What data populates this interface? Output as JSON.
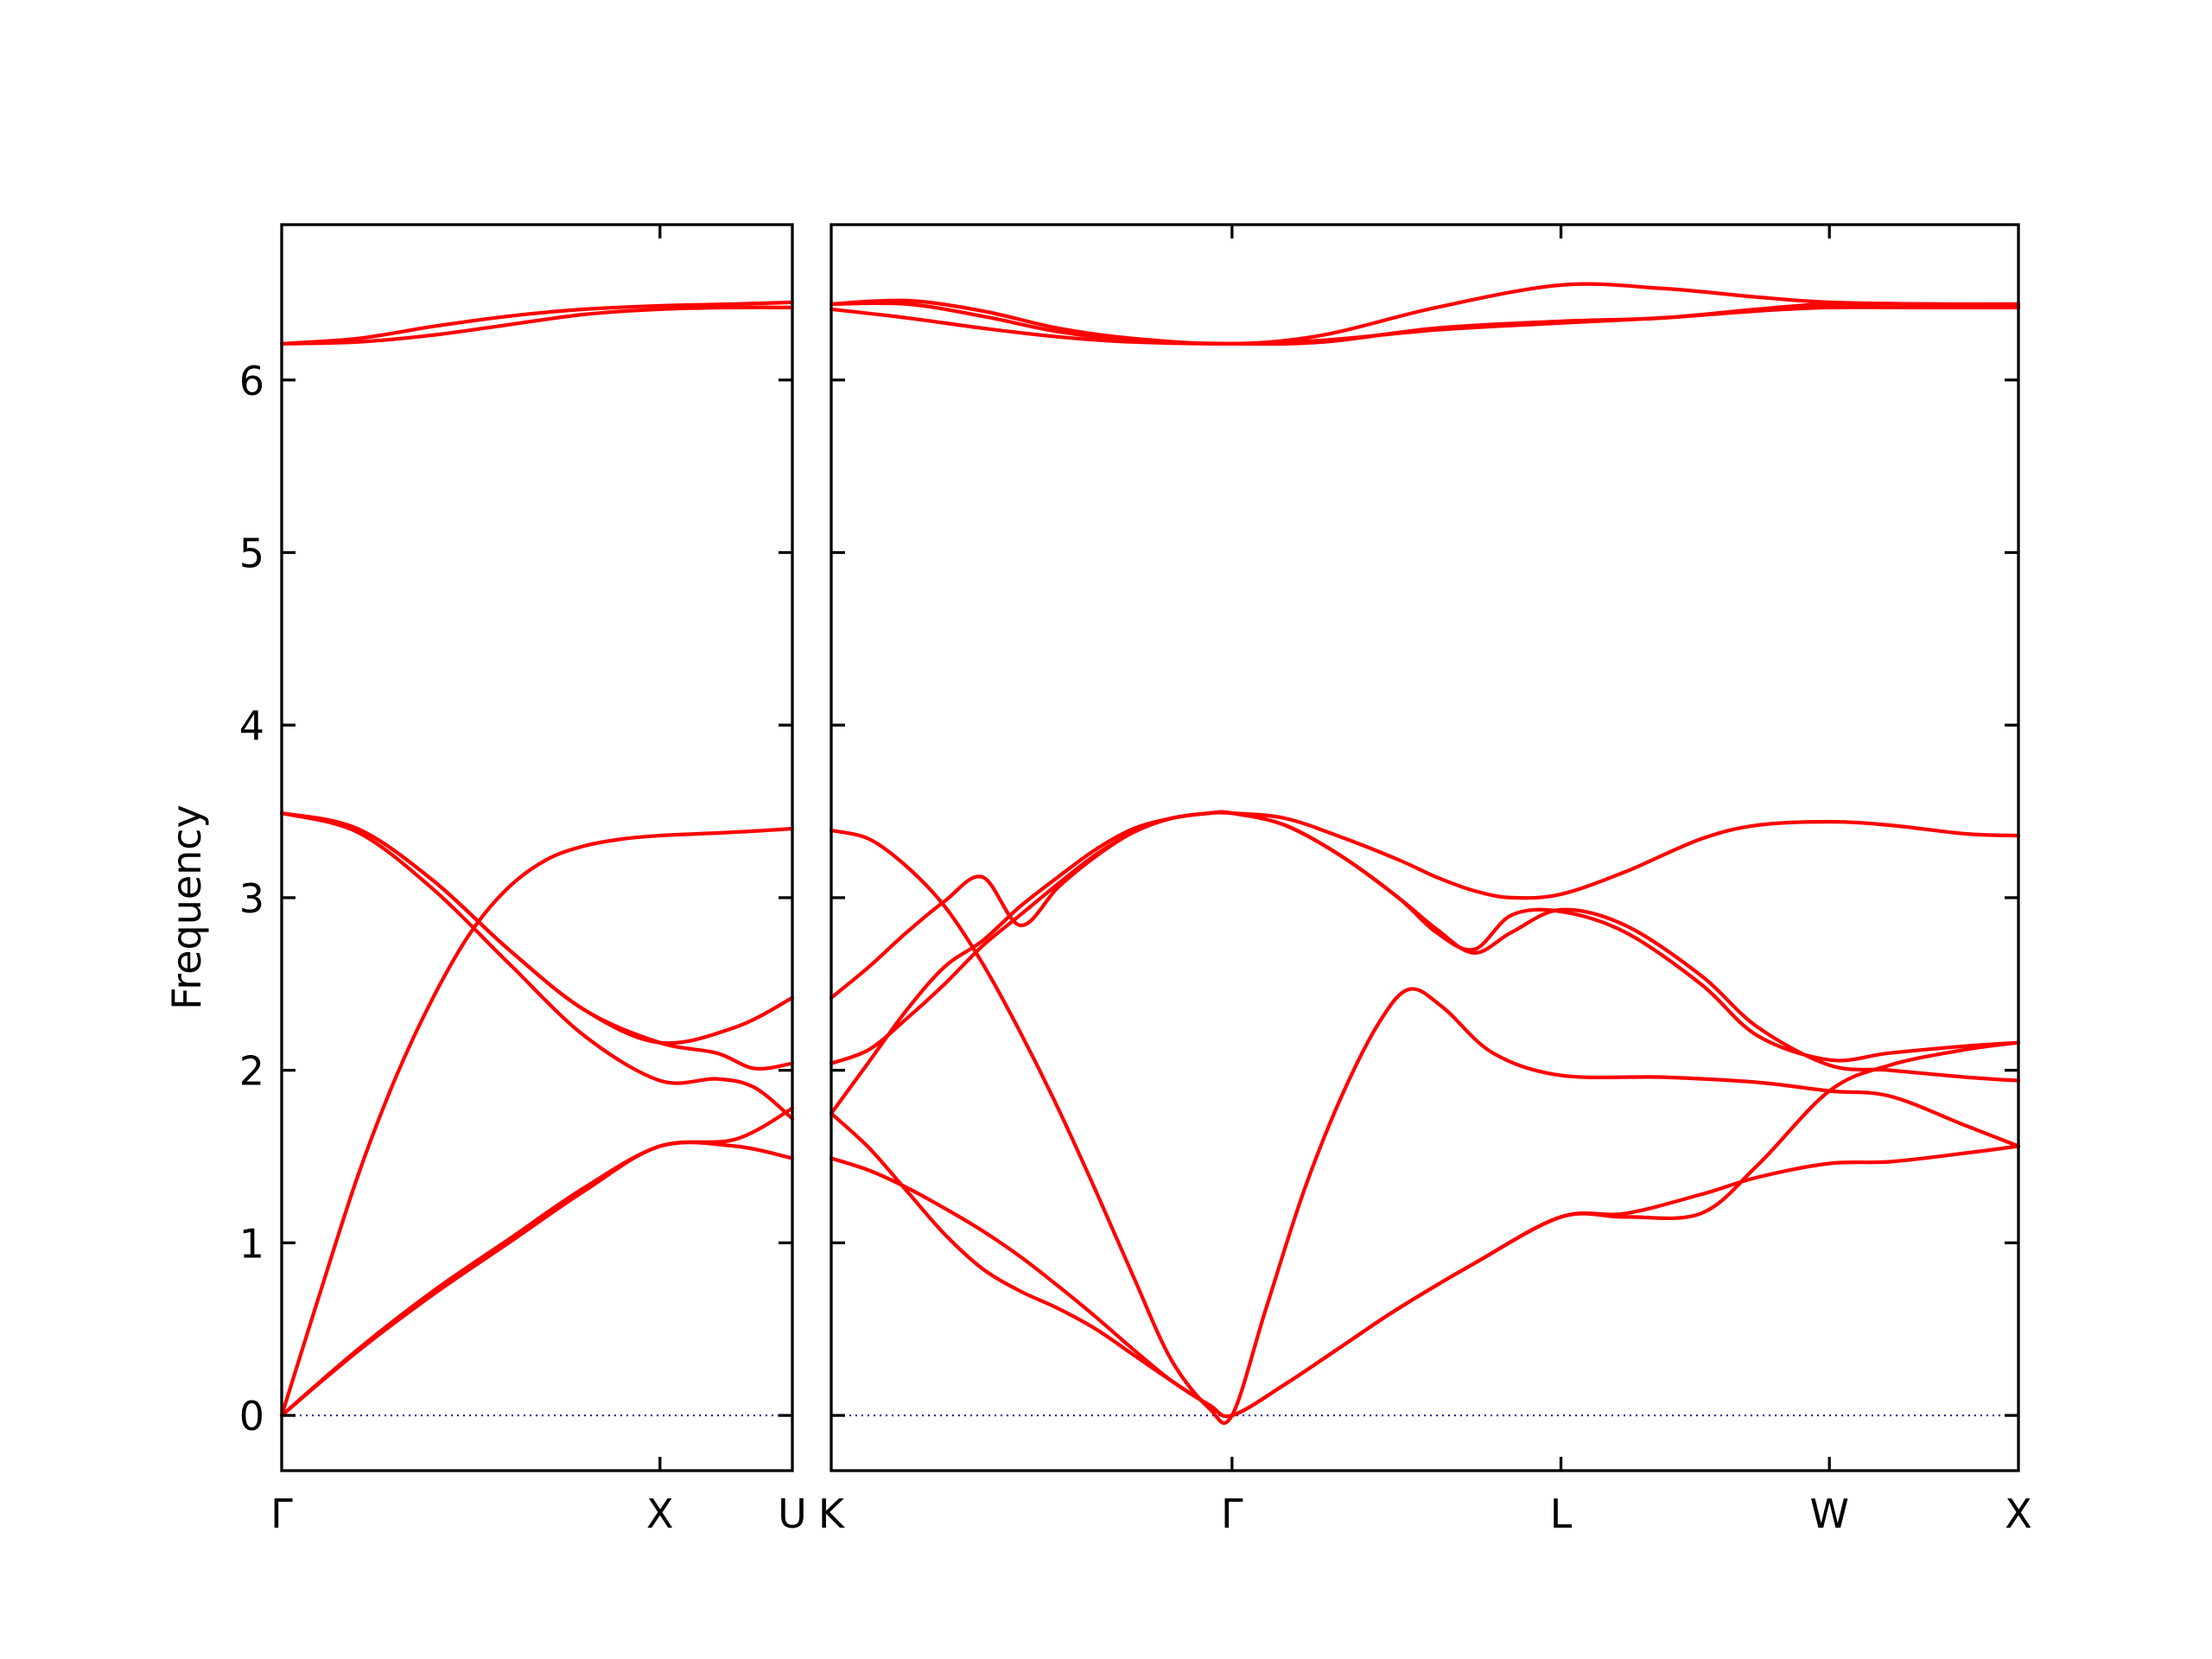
{
  "chart_data": {
    "type": "line",
    "ylabel": "Frequency",
    "ylim": [
      -0.32,
      6.9
    ],
    "yticks": [
      0,
      1,
      2,
      3,
      4,
      5,
      6
    ],
    "line_color": "#ff0000",
    "zero_line_color": "#0000aa",
    "panels": [
      {
        "id": "gamma-x-u",
        "xlim": [
          0,
          1.35
        ],
        "xticks": [
          {
            "x": 0,
            "label": "Γ"
          },
          {
            "x": 1.0,
            "label": "X"
          },
          {
            "x": 1.35,
            "label": "U"
          }
        ],
        "series": [
          {
            "x": [
              0,
              0.2,
              0.4,
              0.6,
              0.8,
              1.0,
              1.2,
              1.35
            ],
            "y": [
              0,
              0.37,
              0.7,
              1.0,
              1.3,
              1.56,
              1.56,
              1.49
            ]
          },
          {
            "x": [
              0,
              0.2,
              0.4,
              0.6,
              0.8,
              1.0,
              1.2,
              1.35
            ],
            "y": [
              0,
              0.38,
              0.72,
              1.02,
              1.32,
              1.56,
              1.6,
              1.78
            ]
          },
          {
            "x": [
              0,
              0.1,
              0.2,
              0.3,
              0.4,
              0.5,
              0.6,
              0.7,
              0.8,
              0.9,
              1.0,
              1.2,
              1.35
            ],
            "y": [
              0,
              0.7,
              1.38,
              1.95,
              2.42,
              2.8,
              3.06,
              3.22,
              3.3,
              3.34,
              3.36,
              3.38,
              3.4
            ]
          },
          {
            "x": [
              0,
              0.2,
              0.4,
              0.6,
              0.8,
              1.0,
              1.15,
              1.25,
              1.35
            ],
            "y": [
              3.49,
              3.38,
              3.05,
              2.62,
              2.2,
              1.94,
              1.95,
              1.9,
              1.72
            ]
          },
          {
            "x": [
              0,
              0.2,
              0.4,
              0.6,
              0.8,
              1.0,
              1.15,
              1.25,
              1.35
            ],
            "y": [
              3.49,
              3.4,
              3.1,
              2.7,
              2.35,
              2.16,
              2.1,
              2.01,
              2.04
            ]
          },
          {
            "x": [
              0,
              0.2,
              0.4,
              0.6,
              0.8,
              1.0,
              1.2,
              1.35
            ],
            "y": [
              3.49,
              3.4,
              3.1,
              2.7,
              2.35,
              2.16,
              2.25,
              2.42
            ]
          },
          {
            "x": [
              0,
              0.2,
              0.4,
              0.6,
              0.8,
              1.0,
              1.2,
              1.35
            ],
            "y": [
              6.21,
              6.22,
              6.26,
              6.32,
              6.38,
              6.41,
              6.42,
              6.42
            ]
          },
          {
            "x": [
              0,
              0.2,
              0.4,
              0.6,
              0.8,
              1.0,
              1.2,
              1.35
            ],
            "y": [
              6.21,
              6.24,
              6.31,
              6.37,
              6.41,
              6.43,
              6.44,
              6.45
            ]
          }
        ]
      },
      {
        "id": "k-gamma-l-w-x",
        "xlim": [
          0,
          3.14
        ],
        "xticks": [
          {
            "x": 0,
            "label": "K"
          },
          {
            "x": 1.06,
            "label": "Γ"
          },
          {
            "x": 1.93,
            "label": "L"
          },
          {
            "x": 2.64,
            "label": "W"
          },
          {
            "x": 3.14,
            "label": "X"
          }
        ],
        "series": [
          {
            "x": [
              0,
              0.1,
              0.2,
              0.3,
              0.4,
              0.5,
              0.6,
              0.7,
              0.8,
              0.9,
              1.0,
              1.06,
              1.2,
              1.35,
              1.5,
              1.7,
              1.93,
              2.1,
              2.3,
              2.45,
              2.64,
              2.8,
              3.0,
              3.14
            ],
            "y": [
              1.75,
              1.55,
              1.3,
              1.05,
              0.85,
              0.72,
              0.62,
              0.5,
              0.35,
              0.2,
              0.06,
              0,
              0.18,
              0.4,
              0.62,
              0.88,
              1.15,
              1.17,
              1.28,
              1.38,
              1.46,
              1.47,
              1.52,
              1.56
            ]
          },
          {
            "x": [
              0,
              0.1,
              0.2,
              0.3,
              0.4,
              0.5,
              0.6,
              0.7,
              0.8,
              0.9,
              1.0,
              1.06,
              1.2,
              1.35,
              1.5,
              1.7,
              1.93,
              2.1,
              2.3,
              2.45,
              2.64,
              2.8,
              3.0,
              3.14
            ],
            "y": [
              1.49,
              1.42,
              1.32,
              1.2,
              1.07,
              0.92,
              0.75,
              0.57,
              0.38,
              0.2,
              0.06,
              0,
              0.18,
              0.4,
              0.62,
              0.88,
              1.15,
              1.15,
              1.17,
              1.45,
              1.88,
              2.03,
              2.12,
              2.16
            ]
          },
          {
            "x": [
              0,
              0.1,
              0.2,
              0.3,
              0.4,
              0.5,
              0.6,
              0.7,
              0.8,
              0.9,
              1.0,
              1.06,
              1.15,
              1.25,
              1.35,
              1.45,
              1.53,
              1.62,
              1.75,
              1.93,
              2.2,
              2.45,
              2.64,
              2.8,
              3.0,
              3.14
            ],
            "y": [
              3.39,
              3.34,
              3.18,
              2.95,
              2.62,
              2.22,
              1.78,
              1.3,
              0.8,
              0.32,
              0.04,
              0,
              0.62,
              1.3,
              1.85,
              2.28,
              2.47,
              2.36,
              2.1,
              1.97,
              1.96,
              1.93,
              1.88,
              1.85,
              1.68,
              1.56
            ]
          },
          {
            "x": [
              0,
              0.1,
              0.2,
              0.3,
              0.4,
              0.5,
              0.6,
              0.7,
              0.8,
              0.9,
              1.0,
              1.06,
              1.2,
              1.35,
              1.5,
              1.6,
              1.7,
              1.8,
              1.93,
              2.1,
              2.3,
              2.45,
              2.64,
              2.8,
              3.0,
              3.14
            ],
            "y": [
              2.04,
              2.12,
              2.3,
              2.5,
              2.72,
              2.9,
              3.08,
              3.25,
              3.38,
              3.46,
              3.49,
              3.49,
              3.42,
              3.24,
              3.0,
              2.82,
              2.68,
              2.8,
              2.93,
              2.84,
              2.55,
              2.25,
              2.03,
              2.0,
              1.96,
              1.94
            ]
          },
          {
            "x": [
              0,
              0.1,
              0.2,
              0.3,
              0.4,
              0.5,
              0.6,
              0.7,
              0.8,
              0.9,
              1.0,
              1.06,
              1.2,
              1.35,
              1.5,
              1.6,
              1.7,
              1.8,
              1.93,
              2.1,
              2.3,
              2.45,
              2.64,
              2.8,
              3.0,
              3.14
            ],
            "y": [
              1.75,
              2.05,
              2.35,
              2.6,
              2.75,
              2.95,
              3.12,
              3.28,
              3.4,
              3.46,
              3.49,
              3.49,
              3.42,
              3.24,
              3.0,
              2.8,
              2.7,
              2.9,
              2.92,
              2.8,
              2.5,
              2.2,
              2.06,
              2.1,
              2.14,
              2.16
            ]
          },
          {
            "x": [
              0,
              0.1,
              0.2,
              0.3,
              0.4,
              0.5,
              0.6,
              0.7,
              0.8,
              0.9,
              1.0,
              1.06,
              1.2,
              1.35,
              1.5,
              1.6,
              1.7,
              1.8,
              1.93,
              2.1,
              2.3,
              2.45,
              2.64,
              2.8,
              3.0,
              3.14
            ],
            "y": [
              2.42,
              2.6,
              2.8,
              2.98,
              3.12,
              2.84,
              3.06,
              3.24,
              3.38,
              3.46,
              3.49,
              3.49,
              3.46,
              3.35,
              3.22,
              3.12,
              3.04,
              3.0,
              3.02,
              3.15,
              3.34,
              3.42,
              3.44,
              3.42,
              3.37,
              3.36
            ]
          },
          {
            "x": [
              0,
              0.2,
              0.4,
              0.6,
              0.8,
              1.06,
              1.3,
              1.6,
              1.93,
              2.2,
              2.45,
              2.64,
              2.9,
              3.14
            ],
            "y": [
              6.41,
              6.36,
              6.3,
              6.25,
              6.22,
              6.21,
              6.23,
              6.29,
              6.33,
              6.36,
              6.4,
              6.42,
              6.42,
              6.42
            ]
          },
          {
            "x": [
              0,
              0.2,
              0.4,
              0.6,
              0.8,
              1.06,
              1.3,
              1.6,
              1.93,
              2.2,
              2.45,
              2.64,
              2.9,
              3.14
            ],
            "y": [
              6.44,
              6.44,
              6.37,
              6.28,
              6.23,
              6.21,
              6.22,
              6.3,
              6.34,
              6.36,
              6.41,
              6.44,
              6.44,
              6.43
            ]
          },
          {
            "x": [
              0,
              0.2,
              0.4,
              0.6,
              0.8,
              1.06,
              1.3,
              1.6,
              1.93,
              2.2,
              2.45,
              2.64,
              2.9,
              3.14
            ],
            "y": [
              6.44,
              6.46,
              6.4,
              6.3,
              6.24,
              6.21,
              6.26,
              6.42,
              6.55,
              6.53,
              6.48,
              6.45,
              6.44,
              6.44
            ]
          }
        ]
      }
    ]
  }
}
